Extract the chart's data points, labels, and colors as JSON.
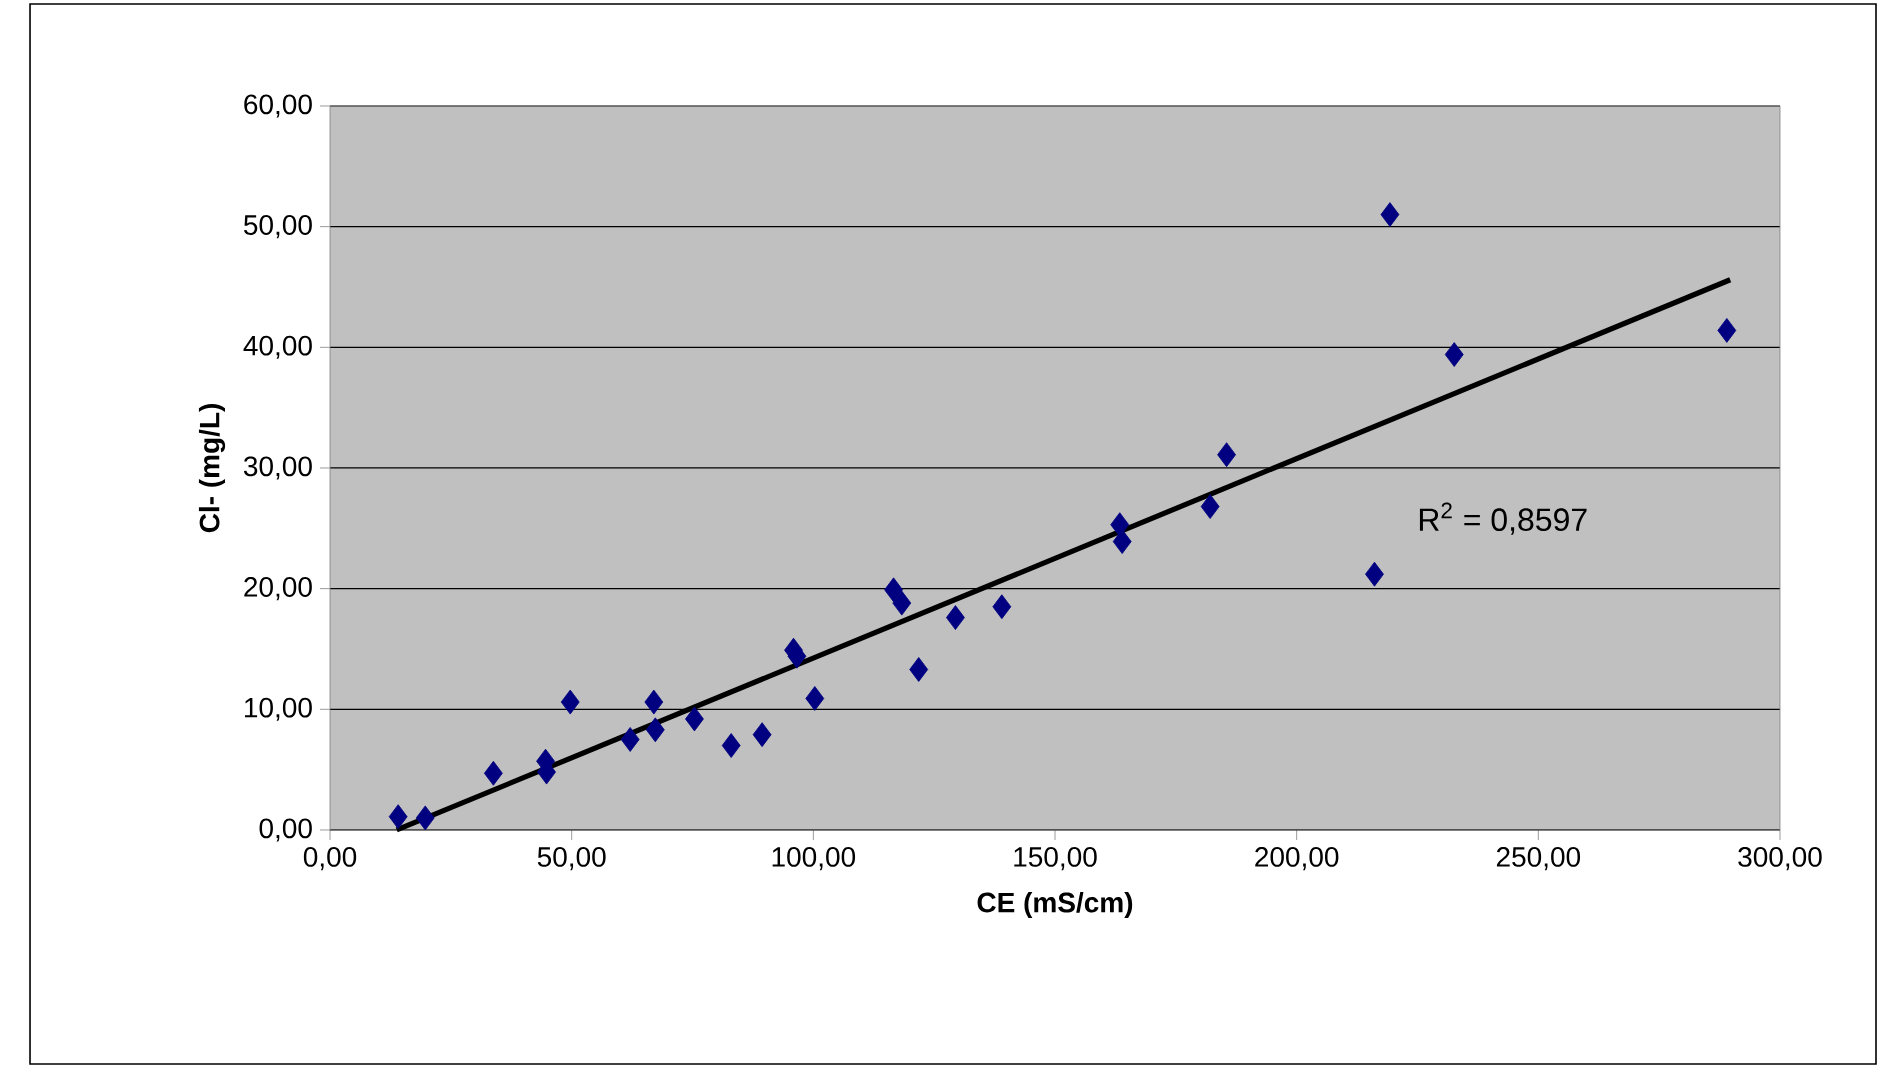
{
  "chart_data": {
    "type": "scatter",
    "xlabel": "CE (mS/cm)",
    "ylabel": "Cl- (mg/L)",
    "xlim": [
      0,
      300
    ],
    "ylim": [
      0,
      60
    ],
    "xticks": [
      {
        "value": 0,
        "label": "0,00"
      },
      {
        "value": 50,
        "label": "50,00"
      },
      {
        "value": 100,
        "label": "100,00"
      },
      {
        "value": 150,
        "label": "150,00"
      },
      {
        "value": 200,
        "label": "200,00"
      },
      {
        "value": 250,
        "label": "250,00"
      },
      {
        "value": 300,
        "label": "300,00"
      }
    ],
    "yticks": [
      {
        "value": 0,
        "label": "0,00"
      },
      {
        "value": 10,
        "label": "10,00"
      },
      {
        "value": 20,
        "label": "20,00"
      },
      {
        "value": 30,
        "label": "30,00"
      },
      {
        "value": 40,
        "label": "40,00"
      },
      {
        "value": 50,
        "label": "50,00"
      },
      {
        "value": 60,
        "label": "60,00"
      }
    ],
    "grid": "y",
    "marker": "diamond",
    "annotations": [
      "R$^{2}$ = 0,8597"
    ],
    "series": [
      {
        "color": "#000080",
        "x": [
          14.1,
          19.7,
          33.8,
          44.6,
          44.8,
          49.7,
          62.1,
          67.0,
          67.3,
          75.4,
          83.0,
          89.4,
          95.9,
          96.6,
          100.3,
          116.6,
          118.3,
          121.8,
          129.4,
          139.0,
          163.4,
          163.9,
          182.1,
          185.5,
          219.3,
          216.1,
          232.6,
          289.0
        ],
        "values": [
          1.1,
          1.0,
          4.7,
          5.7,
          4.8,
          10.6,
          7.5,
          10.6,
          8.3,
          9.2,
          7.0,
          7.9,
          14.9,
          14.4,
          10.9,
          19.9,
          18.8,
          13.3,
          17.6,
          18.5,
          25.3,
          23.9,
          26.8,
          31.1,
          51.0,
          21.2,
          39.4,
          41.4
        ]
      },
      {
        "type": "line",
        "color": "#000000",
        "marker": "none",
        "x": [
          13.8,
          289.7
        ],
        "values": [
          0,
          45.6
        ]
      }
    ]
  }
}
